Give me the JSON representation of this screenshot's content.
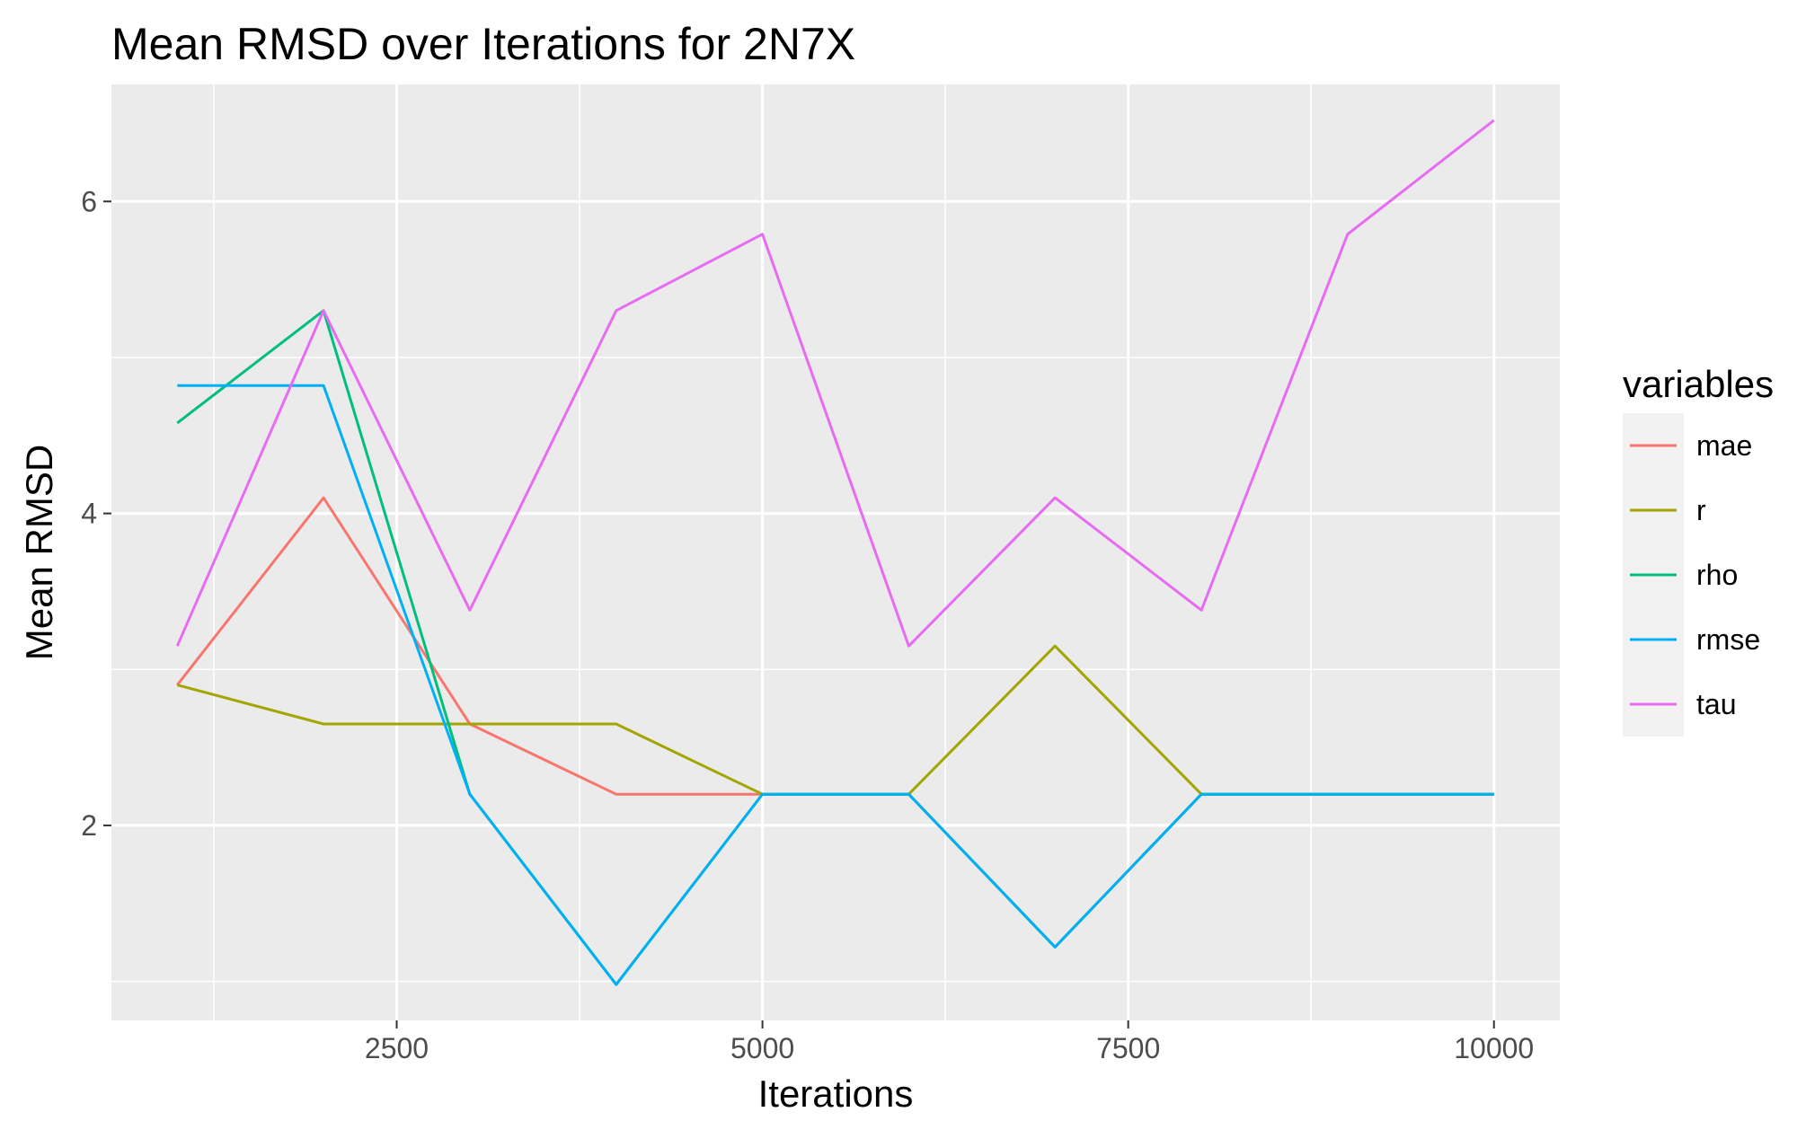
{
  "chart_data": {
    "type": "line",
    "title": "Mean RMSD over Iterations for 2N7X",
    "xlabel": "Iterations",
    "ylabel": "Mean RMSD",
    "xlim": [
      550,
      10450
    ],
    "ylim": [
      0.75,
      6.75
    ],
    "x_ticks": [
      2500,
      5000,
      7500,
      10000
    ],
    "x_tick_labels": [
      "2500",
      "5000",
      "7500",
      "10000"
    ],
    "y_ticks": [
      2,
      4,
      6
    ],
    "y_tick_labels": [
      "2",
      "4",
      "6"
    ],
    "grid": true,
    "legend_title": "variables",
    "legend_position": "right",
    "series": [
      {
        "name": "mae",
        "color": "#F8766D",
        "x": [
          1000,
          2000,
          3000,
          4000,
          5000,
          6000,
          7000,
          8000,
          9000,
          10000
        ],
        "values": [
          2.9,
          4.1,
          2.65,
          2.2,
          2.2,
          2.2,
          1.22,
          2.2,
          2.2,
          2.2
        ]
      },
      {
        "name": "r",
        "color": "#A3A500",
        "x": [
          1000,
          2000,
          3000,
          4000,
          5000,
          6000,
          7000,
          8000,
          9000,
          10000
        ],
        "values": [
          2.9,
          2.65,
          2.65,
          2.65,
          2.2,
          2.2,
          3.15,
          2.2,
          2.2,
          2.2
        ]
      },
      {
        "name": "rho",
        "color": "#00BF7D",
        "x": [
          1000,
          2000,
          3000,
          4000,
          5000,
          6000,
          7000,
          8000,
          9000,
          10000
        ],
        "values": [
          4.58,
          5.3,
          2.2,
          0.98,
          2.2,
          2.2,
          1.22,
          2.2,
          2.2,
          2.2
        ]
      },
      {
        "name": "rmse",
        "color": "#00B0F6",
        "x": [
          1000,
          2000,
          3000,
          4000,
          5000,
          6000,
          7000,
          8000,
          9000,
          10000
        ],
        "values": [
          4.82,
          4.82,
          2.2,
          0.98,
          2.2,
          2.2,
          1.22,
          2.2,
          2.2,
          2.2
        ]
      },
      {
        "name": "tau",
        "color": "#E76BF3",
        "x": [
          1000,
          2000,
          3000,
          4000,
          5000,
          6000,
          7000,
          8000,
          9000,
          10000
        ],
        "values": [
          3.15,
          5.3,
          3.38,
          5.3,
          5.79,
          3.15,
          4.1,
          3.38,
          5.79,
          6.52
        ]
      }
    ]
  }
}
